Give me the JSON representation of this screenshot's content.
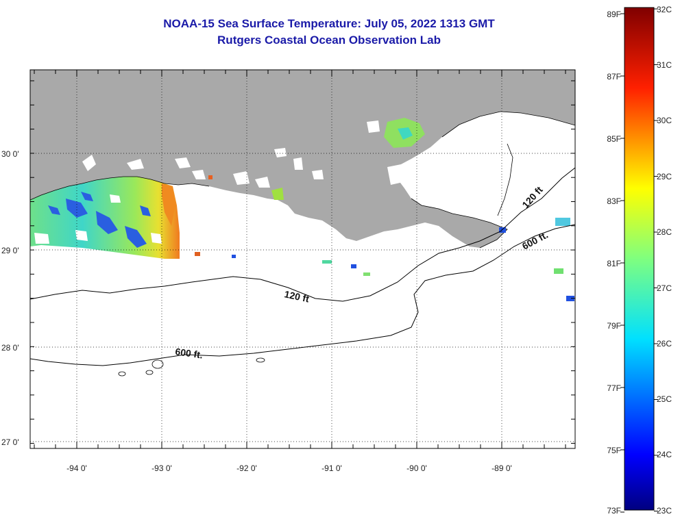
{
  "header": {
    "title": "NOAA-15 Sea Surface Temperature:  July 05, 2022 1313 GMT",
    "subtitle": "Rutgers Coastal Ocean Observation Lab"
  },
  "axes": {
    "lon_labels": [
      "-94 0'",
      "-93 0'",
      "-92 0'",
      "-91 0'",
      "-90 0'",
      "-89 0'"
    ],
    "lat_labels": [
      "30 0'",
      "29 0'",
      "28 0'",
      "27 0'"
    ],
    "lon_range": [
      -94.55,
      -88.2
    ],
    "lat_range": [
      26.95,
      30.85
    ]
  },
  "contours": {
    "shelf_label": "120 ft",
    "slope_label": "600 ft."
  },
  "colorbar": {
    "f_labels": [
      "89F",
      "87F",
      "85F",
      "83F",
      "81F",
      "79F",
      "77F",
      "75F",
      "73F"
    ],
    "c_labels": [
      "32C",
      "31C",
      "30C",
      "29C",
      "28C",
      "27C",
      "26C",
      "25C",
      "24C",
      "23C"
    ],
    "range_c": [
      23,
      32
    ]
  },
  "colors": {
    "land": "#a9a9a9",
    "title": "#1a1aa8",
    "ocean_nodata": "#ffffff"
  }
}
